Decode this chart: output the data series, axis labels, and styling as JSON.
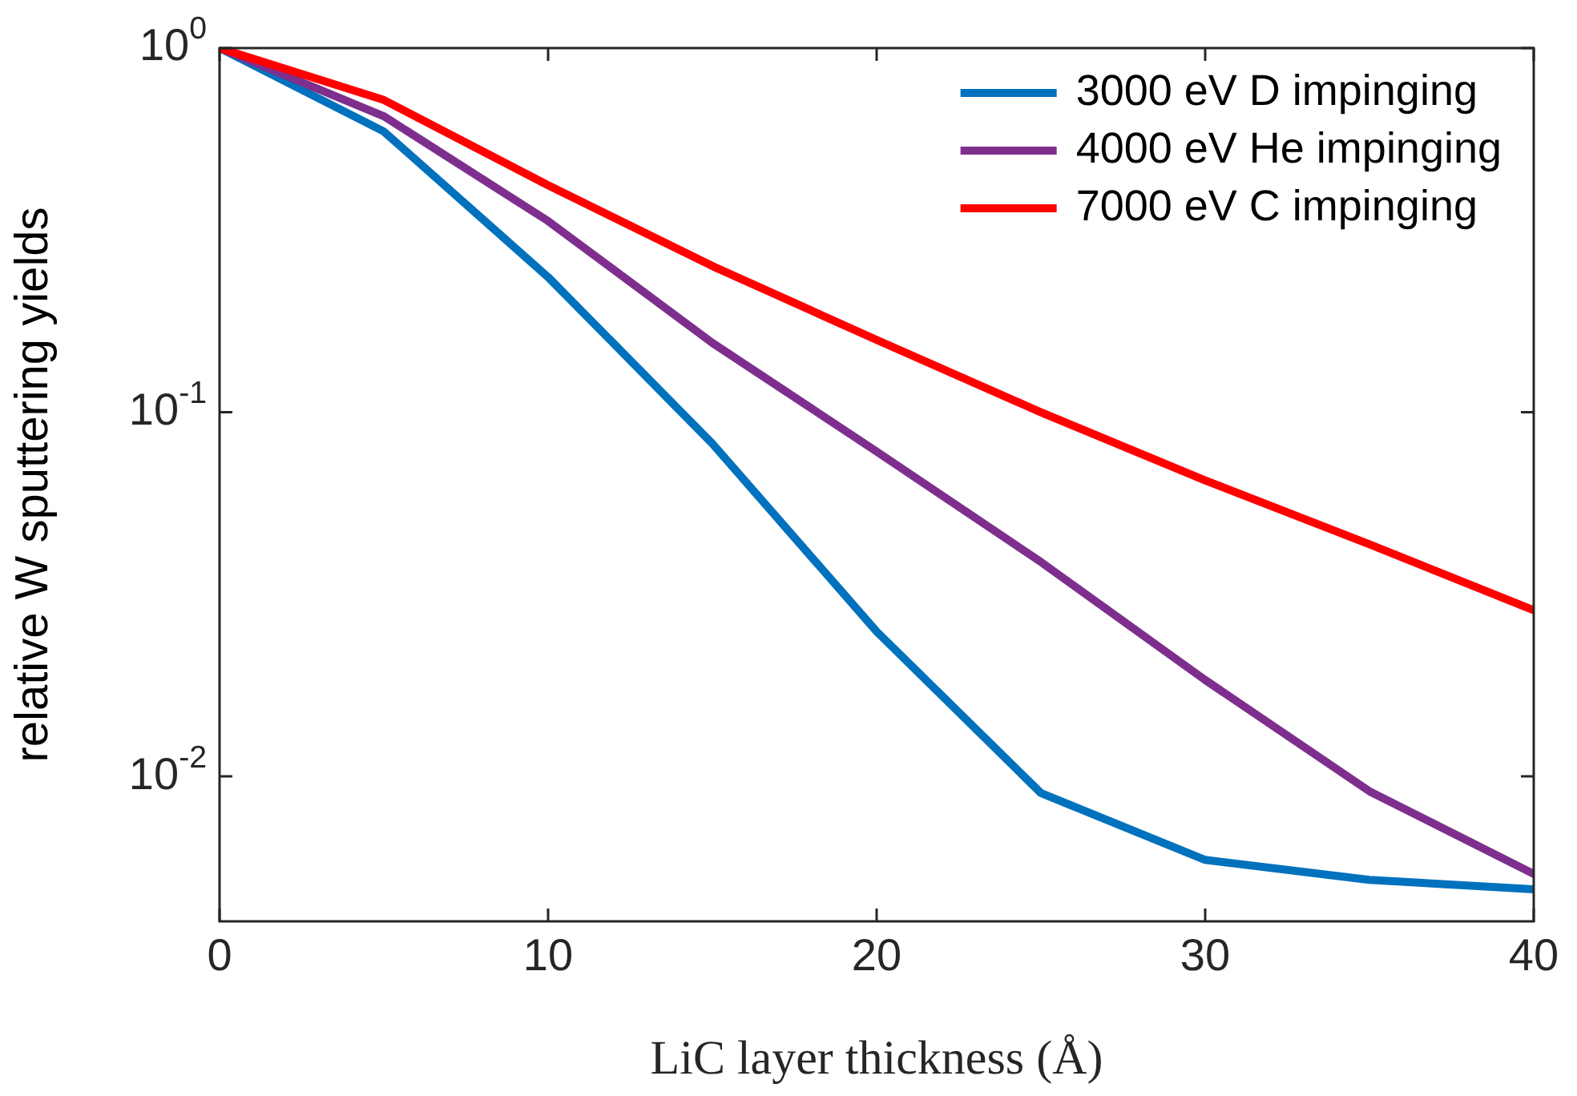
{
  "chart_data": {
    "type": "line",
    "xlabel": "LiC layer thickness (Å)",
    "ylabel": "relative W sputtering yields",
    "x": [
      0,
      5,
      10,
      15,
      20,
      25,
      30,
      35,
      40
    ],
    "series": [
      {
        "name": "3000 eV D impinging",
        "color": "#0072bd",
        "values": [
          1,
          0.59,
          0.235,
          0.082,
          0.025,
          0.009,
          0.0059,
          0.0052,
          0.0049
        ]
      },
      {
        "name": "4000 eV He impinging",
        "color": "#7e2f8e",
        "values": [
          1,
          0.65,
          0.335,
          0.155,
          0.078,
          0.0388,
          0.0184,
          0.0091,
          0.0054
        ]
      },
      {
        "name": "7000 eV C impinging",
        "color": "#ff0000",
        "values": [
          1,
          0.72,
          0.42,
          0.252,
          0.158,
          0.1,
          0.065,
          0.0434,
          0.0286
        ]
      }
    ],
    "xlim": [
      0,
      40
    ],
    "xticks": [
      0,
      10,
      20,
      30,
      40
    ],
    "ylim": [
      0.004,
      1
    ],
    "yticks": [
      {
        "value": 0.01,
        "label": "10$^{-2}$"
      },
      {
        "value": 0.1,
        "label": "10$^{-1}$"
      },
      {
        "value": 1,
        "label": "10$^{0}$"
      }
    ],
    "log": "y",
    "grid": false,
    "legend": "top right",
    "marker": "none",
    "line_style": "solid"
  }
}
